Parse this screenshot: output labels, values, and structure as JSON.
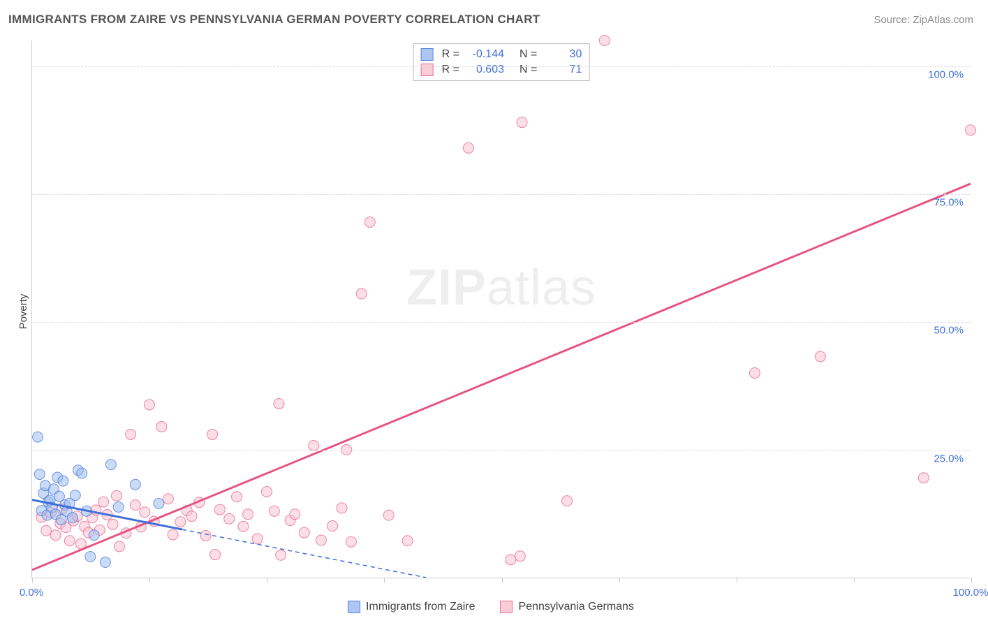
{
  "header": {
    "title": "IMMIGRANTS FROM ZAIRE VS PENNSYLVANIA GERMAN POVERTY CORRELATION CHART",
    "source": "Source: ZipAtlas.com"
  },
  "watermark": {
    "zip": "ZIP",
    "atlas": "atlas"
  },
  "ylabel": "Poverty",
  "axes": {
    "xlim": [
      0,
      100
    ],
    "ylim": [
      0,
      105
    ],
    "yticks": [
      {
        "v": 25,
        "label": "25.0%"
      },
      {
        "v": 50,
        "label": "50.0%"
      },
      {
        "v": 75,
        "label": "75.0%"
      },
      {
        "v": 100,
        "label": "100.0%"
      }
    ],
    "xtick_positions": [
      0,
      12.5,
      25,
      37.5,
      50,
      62.5,
      75,
      87.5,
      100
    ],
    "xtick_labels": [
      {
        "v": 0,
        "label": "0.0%"
      },
      {
        "v": 100,
        "label": "100.0%"
      }
    ],
    "grid_color": "#dddddd",
    "axis_color": "#cccccc",
    "tick_label_color": "#3f6fd8"
  },
  "series": {
    "blue": {
      "name": "Immigrants from Zaire",
      "fill": "#9fbdf0",
      "stroke": "#3f6fd8",
      "opacity": 0.55,
      "R": "-0.144",
      "N": "30",
      "trend": {
        "x1": 0,
        "y1": 15.2,
        "x2": 42,
        "y2": 0,
        "solid_until_x": 16
      },
      "points": [
        [
          0.6,
          27.5
        ],
        [
          0.8,
          20.2
        ],
        [
          1.0,
          13.1
        ],
        [
          1.2,
          16.5
        ],
        [
          1.4,
          18.0
        ],
        [
          1.6,
          12.2
        ],
        [
          1.7,
          14.8
        ],
        [
          1.9,
          15.1
        ],
        [
          2.1,
          13.7
        ],
        [
          2.3,
          17.3
        ],
        [
          2.5,
          12.4
        ],
        [
          2.7,
          19.6
        ],
        [
          2.9,
          15.9
        ],
        [
          3.1,
          11.3
        ],
        [
          3.3,
          18.9
        ],
        [
          3.5,
          14.2
        ],
        [
          3.7,
          13.0
        ],
        [
          4.0,
          14.5
        ],
        [
          4.3,
          11.7
        ],
        [
          4.6,
          16.1
        ],
        [
          4.9,
          21.0
        ],
        [
          5.3,
          20.4
        ],
        [
          5.8,
          13.0
        ],
        [
          6.2,
          4.1
        ],
        [
          6.6,
          8.3
        ],
        [
          7.8,
          3.0
        ],
        [
          8.4,
          22.1
        ],
        [
          9.2,
          13.8
        ],
        [
          11.0,
          18.2
        ],
        [
          13.5,
          14.5
        ]
      ]
    },
    "pink": {
      "name": "Pennsylvania Germans",
      "fill": "#f9c5d1",
      "stroke": "#e75480",
      "opacity": 0.55,
      "R": "0.603",
      "N": "71",
      "trend": {
        "x1": 0,
        "y1": 1.5,
        "x2": 100,
        "y2": 77
      },
      "points": [
        [
          1.0,
          11.8
        ],
        [
          1.5,
          9.2
        ],
        [
          2.0,
          12.7
        ],
        [
          2.5,
          8.3
        ],
        [
          3.0,
          10.6
        ],
        [
          3.2,
          13.4
        ],
        [
          3.6,
          9.8
        ],
        [
          4.0,
          7.2
        ],
        [
          4.4,
          11.1
        ],
        [
          4.8,
          12.0
        ],
        [
          5.2,
          6.6
        ],
        [
          5.6,
          10.0
        ],
        [
          6.0,
          8.8
        ],
        [
          6.4,
          11.7
        ],
        [
          6.8,
          13.2
        ],
        [
          7.2,
          9.3
        ],
        [
          7.6,
          14.8
        ],
        [
          8.0,
          12.3
        ],
        [
          8.6,
          10.4
        ],
        [
          9.0,
          16.0
        ],
        [
          9.3,
          6.1
        ],
        [
          10.0,
          8.7
        ],
        [
          10.5,
          28.0
        ],
        [
          11.0,
          14.2
        ],
        [
          11.6,
          9.9
        ],
        [
          12.0,
          12.8
        ],
        [
          12.5,
          33.8
        ],
        [
          13.0,
          11.0
        ],
        [
          13.8,
          29.5
        ],
        [
          14.5,
          15.4
        ],
        [
          15.0,
          8.4
        ],
        [
          15.8,
          10.9
        ],
        [
          16.5,
          13.1
        ],
        [
          17.0,
          12.0
        ],
        [
          17.8,
          14.7
        ],
        [
          18.5,
          8.2
        ],
        [
          19.2,
          28.0
        ],
        [
          19.5,
          4.5
        ],
        [
          20.0,
          13.3
        ],
        [
          21.0,
          11.5
        ],
        [
          21.8,
          15.8
        ],
        [
          22.5,
          10.0
        ],
        [
          23.0,
          12.4
        ],
        [
          24.0,
          7.6
        ],
        [
          25.0,
          16.8
        ],
        [
          25.8,
          13.0
        ],
        [
          26.3,
          34.0
        ],
        [
          26.5,
          4.4
        ],
        [
          27.5,
          11.2
        ],
        [
          28.0,
          12.4
        ],
        [
          29.0,
          8.8
        ],
        [
          30.0,
          25.8
        ],
        [
          30.8,
          7.3
        ],
        [
          32.0,
          10.1
        ],
        [
          33.0,
          13.6
        ],
        [
          33.5,
          25.0
        ],
        [
          34.0,
          7.0
        ],
        [
          35.1,
          55.5
        ],
        [
          36.0,
          69.5
        ],
        [
          38.0,
          12.2
        ],
        [
          40.0,
          7.2
        ],
        [
          46.5,
          84.0
        ],
        [
          51.0,
          3.5
        ],
        [
          52.0,
          4.2
        ],
        [
          52.2,
          89.0
        ],
        [
          57.0,
          15.0
        ],
        [
          61.0,
          105.0
        ],
        [
          77.0,
          40.0
        ],
        [
          84.0,
          43.2
        ],
        [
          95.0,
          19.5
        ],
        [
          100.0,
          87.5
        ]
      ]
    }
  },
  "legend_top_labels": {
    "R": "R =",
    "N": "N ="
  },
  "legend_bottom": {
    "blue_label": "Immigrants from Zaire",
    "pink_label": "Pennsylvania Germans"
  },
  "style": {
    "marker_radius": 7.5,
    "trend_width_pink": 3,
    "trend_width_blue_solid": 3,
    "trend_width_blue_dash": 1.5,
    "dash_pattern": "6,5"
  }
}
